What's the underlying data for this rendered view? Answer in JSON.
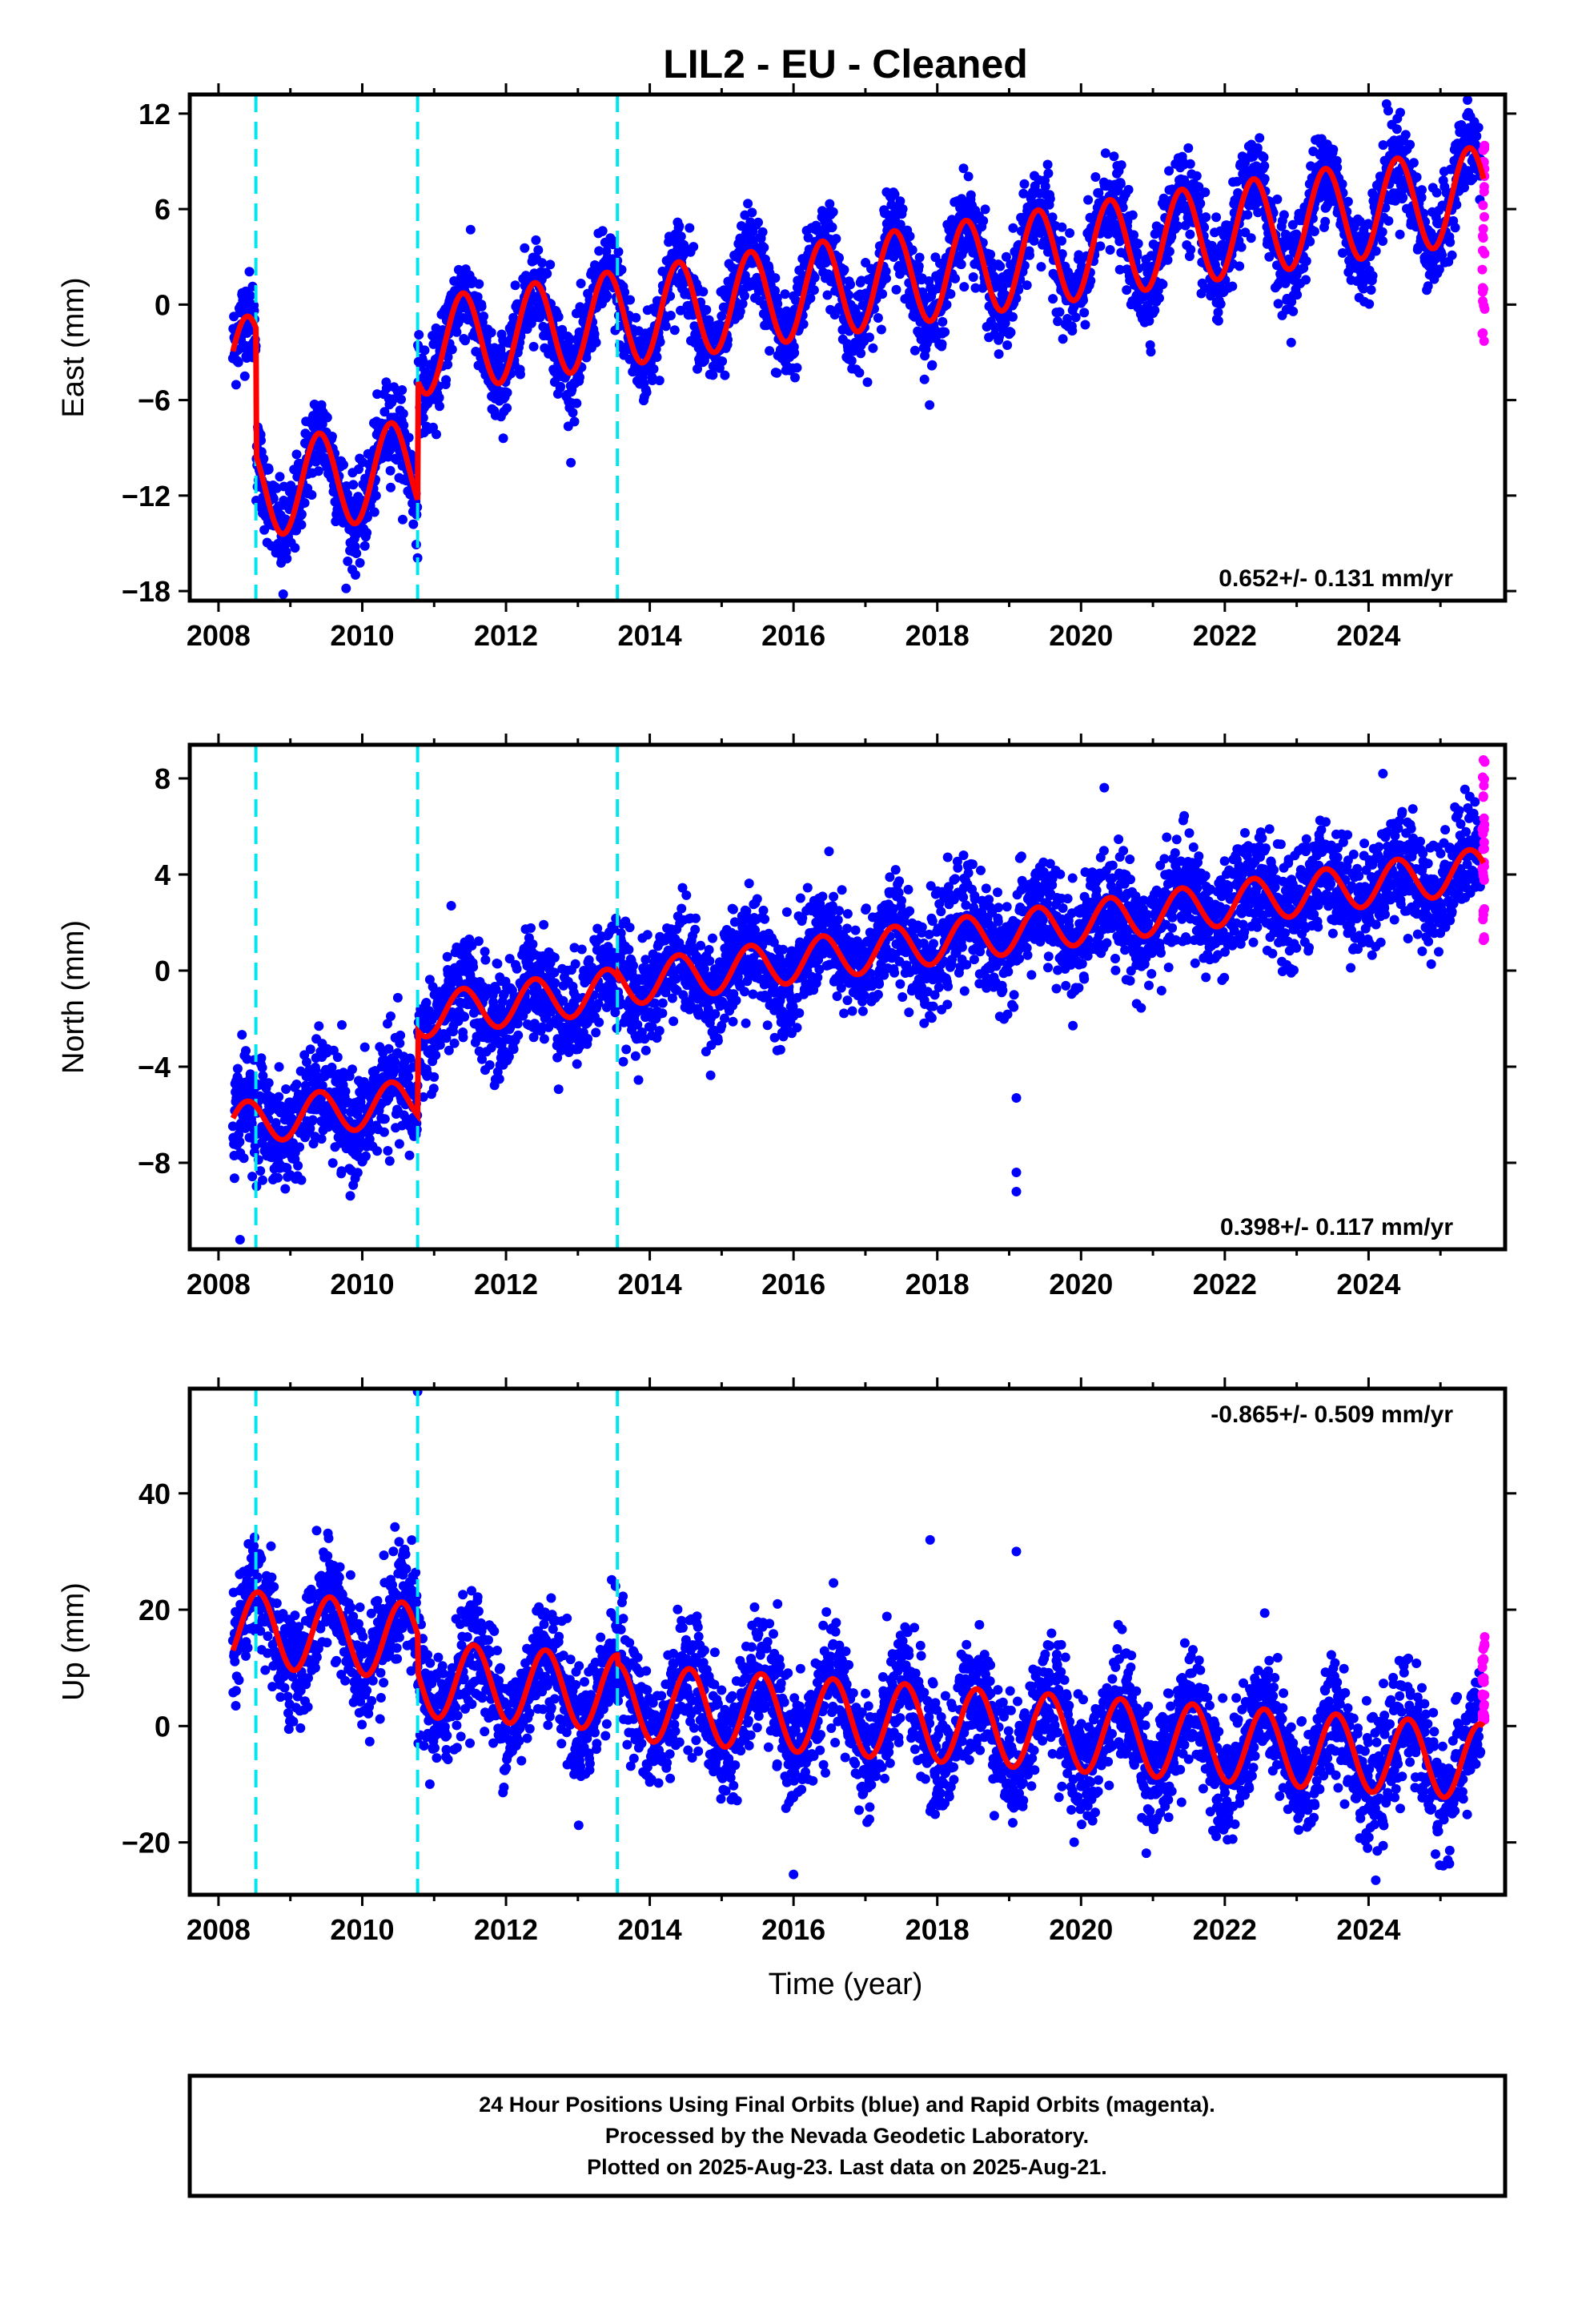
{
  "title": "LIL2  - EU - Cleaned",
  "xlabel": "Time (year)",
  "footer": [
    "24 Hour Positions Using Final Orbits (blue) and Rapid Orbits (magenta).",
    "Processed by the Nevada Geodetic Laboratory.",
    "Plotted on 2025-Aug-23. Last data on 2025-Aug-21."
  ],
  "colors": {
    "final_orbits": "#0000ff",
    "rapid_orbits": "#ff00ff",
    "model_fit": "#ff0000",
    "steps": "#00e5ee",
    "frame": "#000000"
  },
  "chart_data": [
    {
      "type": "scatter",
      "ylabel": "East (mm)",
      "rate_text": "0.652+/- 0.131 mm/yr",
      "rate_position": "bottom-right",
      "xlim": [
        2007.6,
        2025.9
      ],
      "ylim": [
        -18.6,
        13.2
      ],
      "x_ticks": [
        2008,
        2010,
        2012,
        2014,
        2016,
        2018,
        2020,
        2022,
        2024
      ],
      "y_ticks": [
        12,
        6,
        0,
        -6,
        -12,
        -18
      ],
      "y_tick_labels": [
        "12",
        "6",
        "0",
        "−6",
        "−12",
        "−18"
      ],
      "step_epochs": [
        2008.52,
        2010.77,
        2013.55
      ],
      "model": {
        "start": 2008.2,
        "end": 2025.6,
        "rate": 0.652,
        "annual_amplitude": 3.0,
        "annual_phase_year_fraction": 0.4,
        "segments": [
          {
            "from": 2008.2,
            "to": 2008.52,
            "offset_at_2008": -4.0
          },
          {
            "from": 2008.52,
            "to": 2010.77,
            "offset_at_2008": -12.0
          },
          {
            "from": 2010.77,
            "to": 2013.55,
            "offset_at_2008": -4.5
          },
          {
            "from": 2013.55,
            "to": 2025.6,
            "offset_at_2008": -4.5
          }
        ]
      },
      "scatter_noise": 1.4,
      "rapid_orbit_points": {
        "x": 2025.6,
        "y_range": [
          -3.0,
          10.0
        ]
      },
      "outliers": [
        {
          "x": 2024.25,
          "y": 12.6
        },
        {
          "x": 2008.9,
          "y": -18.2
        }
      ]
    },
    {
      "type": "scatter",
      "ylabel": "North (mm)",
      "rate_text": "0.398+/- 0.117 mm/yr",
      "rate_position": "bottom-right",
      "xlim": [
        2007.6,
        2025.9
      ],
      "ylim": [
        -11.6,
        9.4
      ],
      "x_ticks": [
        2008,
        2010,
        2012,
        2014,
        2016,
        2018,
        2020,
        2022,
        2024
      ],
      "y_ticks": [
        8,
        4,
        0,
        -4,
        -8
      ],
      "y_tick_labels": [
        "8",
        "4",
        "0",
        "−4",
        "−8"
      ],
      "step_epochs": [
        2008.52,
        2010.77,
        2013.55
      ],
      "model": {
        "start": 2008.2,
        "end": 2025.6,
        "rate": 0.398,
        "annual_amplitude": 0.9,
        "annual_phase_year_fraction": 0.4,
        "segments": [
          {
            "from": 2008.2,
            "to": 2010.77,
            "offset_at_2008": -6.5
          },
          {
            "from": 2010.77,
            "to": 2013.55,
            "offset_at_2008": -3.0
          },
          {
            "from": 2013.55,
            "to": 2025.6,
            "offset_at_2008": -2.8
          }
        ]
      },
      "scatter_noise": 1.1,
      "rapid_orbit_points": {
        "x": 2025.6,
        "y_range": [
          1.2,
          9.1
        ]
      },
      "outliers": [
        {
          "x": 2019.1,
          "y": -5.3
        },
        {
          "x": 2019.1,
          "y": -8.4
        },
        {
          "x": 2019.1,
          "y": -9.2
        },
        {
          "x": 2008.3,
          "y": -11.2
        },
        {
          "x": 2024.2,
          "y": 8.2
        }
      ]
    },
    {
      "type": "scatter",
      "ylabel": "Up (mm)",
      "rate_text": "-0.865+/- 0.509 mm/yr",
      "rate_position": "top-right",
      "xlim": [
        2007.6,
        2025.9
      ],
      "ylim": [
        -29,
        58
      ],
      "x_ticks": [
        2008,
        2010,
        2012,
        2014,
        2016,
        2018,
        2020,
        2022,
        2024
      ],
      "y_ticks": [
        40,
        20,
        0,
        -20
      ],
      "y_tick_labels": [
        "40",
        "20",
        "0",
        "−20"
      ],
      "step_epochs": [
        2008.52,
        2010.77,
        2013.55
      ],
      "model": {
        "start": 2008.2,
        "end": 2025.6,
        "rate": -0.865,
        "annual_amplitude": 6.5,
        "annual_phase_year_fraction": 0.55,
        "segments": [
          {
            "from": 2008.2,
            "to": 2010.77,
            "offset_at_2008": 17.0
          },
          {
            "from": 2010.77,
            "to": 2013.55,
            "offset_at_2008": 10.5
          },
          {
            "from": 2013.55,
            "to": 2025.6,
            "offset_at_2008": 9.0
          }
        ]
      },
      "scatter_noise": 5.0,
      "rapid_orbit_points": {
        "x": 2025.6,
        "y_range": [
          1.0,
          15.5
        ]
      },
      "outliers": [
        {
          "x": 2010.77,
          "y": 57.5
        },
        {
          "x": 2017.9,
          "y": 32.0
        },
        {
          "x": 2019.1,
          "y": 30.0
        },
        {
          "x": 2016.0,
          "y": -25.5
        },
        {
          "x": 2024.1,
          "y": -26.5
        }
      ]
    }
  ]
}
